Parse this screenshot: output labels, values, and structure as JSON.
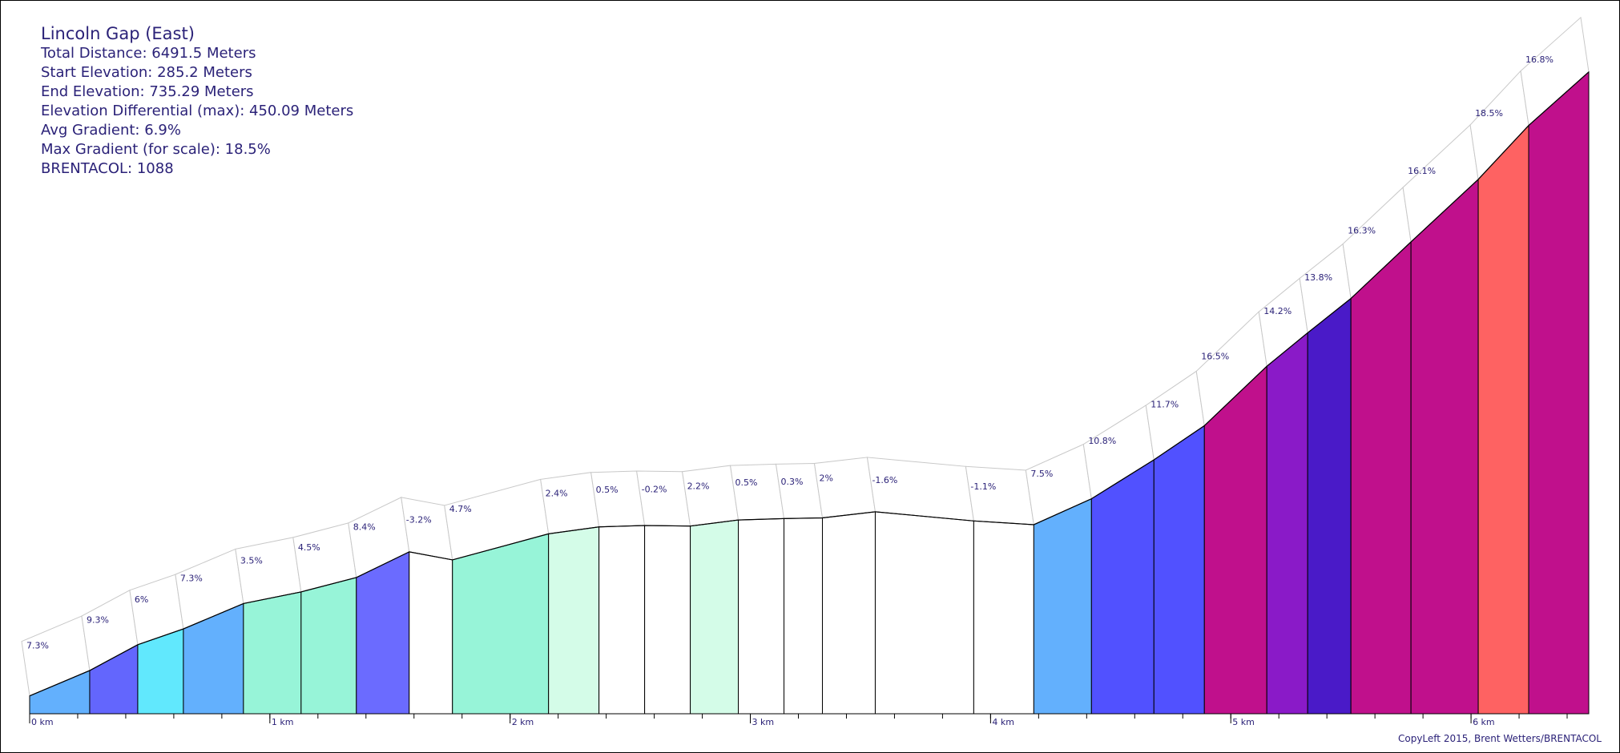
{
  "info": {
    "title": "Lincoln Gap (East)",
    "total_distance": "Total Distance: 6491.5 Meters",
    "start_elevation": "Start Elevation: 285.2 Meters",
    "end_elevation": "End Elevation: 735.29 Meters",
    "elevation_differential": "Elevation Differential (max): 450.09 Meters",
    "avg_gradient": "Avg Gradient: 6.9%",
    "max_gradient": "Max Gradient (for scale): 18.5%",
    "brentacol": "BRENTACOL: 1088"
  },
  "credit": "CopyLeft 2015, Brent Wetters/BRENTACOL",
  "chart_data": {
    "type": "area",
    "xlabel": "",
    "ylabel": "",
    "x_unit": "km",
    "x_ticks": [
      "0 km",
      "1 km",
      "2 km",
      "3 km",
      "4 km",
      "5 km",
      "6 km"
    ],
    "xlim": [
      0,
      6.5
    ],
    "elevation_start": 285.2,
    "elevation_end": 735.29,
    "segments": [
      {
        "start_km": 0.0,
        "end_km": 0.25,
        "gradient_label": "7.3%",
        "color": "#63b0fd"
      },
      {
        "start_km": 0.25,
        "end_km": 0.45,
        "gradient_label": "9.3%",
        "color": "#6366fd"
      },
      {
        "start_km": 0.45,
        "end_km": 0.64,
        "gradient_label": "6%",
        "color": "#61e8fd"
      },
      {
        "start_km": 0.64,
        "end_km": 0.89,
        "gradient_label": "7.3%",
        "color": "#63b0fd"
      },
      {
        "start_km": 0.89,
        "end_km": 1.13,
        "gradient_label": "3.5%",
        "color": "#97f4d8"
      },
      {
        "start_km": 1.13,
        "end_km": 1.36,
        "gradient_label": "4.5%",
        "color": "#97f4d8"
      },
      {
        "start_km": 1.36,
        "end_km": 1.58,
        "gradient_label": "8.4%",
        "color": "#6b6bff"
      },
      {
        "start_km": 1.58,
        "end_km": 1.76,
        "gradient_label": "-3.2%",
        "color": "#ffffff"
      },
      {
        "start_km": 1.76,
        "end_km": 2.16,
        "gradient_label": "4.7%",
        "color": "#97f4d8"
      },
      {
        "start_km": 2.16,
        "end_km": 2.37,
        "gradient_label": "2.4%",
        "color": "#d4fce8"
      },
      {
        "start_km": 2.37,
        "end_km": 2.56,
        "gradient_label": "0.5%",
        "color": "#ffffff"
      },
      {
        "start_km": 2.56,
        "end_km": 2.75,
        "gradient_label": "-0.2%",
        "color": "#ffffff"
      },
      {
        "start_km": 2.75,
        "end_km": 2.95,
        "gradient_label": "2.2%",
        "color": "#d4fce8"
      },
      {
        "start_km": 2.95,
        "end_km": 3.14,
        "gradient_label": "0.5%",
        "color": "#ffffff"
      },
      {
        "start_km": 3.14,
        "end_km": 3.3,
        "gradient_label": "0.3%",
        "color": "#ffffff"
      },
      {
        "start_km": 3.3,
        "end_km": 3.52,
        "gradient_label": "2%",
        "color": "#ffffff"
      },
      {
        "start_km": 3.52,
        "end_km": 3.93,
        "gradient_label": "-1.6%",
        "color": "#ffffff"
      },
      {
        "start_km": 3.93,
        "end_km": 4.18,
        "gradient_label": "-1.1%",
        "color": "#ffffff"
      },
      {
        "start_km": 4.18,
        "end_km": 4.42,
        "gradient_label": "7.5%",
        "color": "#63b0fd"
      },
      {
        "start_km": 4.42,
        "end_km": 4.68,
        "gradient_label": "10.8%",
        "color": "#5151ff"
      },
      {
        "start_km": 4.68,
        "end_km": 4.89,
        "gradient_label": "11.7%",
        "color": "#5151ff"
      },
      {
        "start_km": 4.89,
        "end_km": 5.15,
        "gradient_label": "16.5%",
        "color": "#c0108c"
      },
      {
        "start_km": 5.15,
        "end_km": 5.32,
        "gradient_label": "14.2%",
        "color": "#8a1ac8"
      },
      {
        "start_km": 5.32,
        "end_km": 5.5,
        "gradient_label": "13.8%",
        "color": "#4a1ac8"
      },
      {
        "start_km": 5.5,
        "end_km": 5.75,
        "gradient_label": "16.3%",
        "color": "#c0108c"
      },
      {
        "start_km": 5.75,
        "end_km": 6.03,
        "gradient_label": "16.1%",
        "color": "#c0108c"
      },
      {
        "start_km": 6.03,
        "end_km": 6.24,
        "gradient_label": "18.5%",
        "color": "#fe6262"
      },
      {
        "start_km": 6.24,
        "end_km": 6.49,
        "gradient_label": "16.8%",
        "color": "#c0108c"
      }
    ],
    "elevation_points": [
      285.2,
      303.5,
      322.1,
      333.5,
      351.8,
      360.2,
      370.6,
      389.1,
      383.3,
      402.1,
      407.1,
      408.1,
      407.7,
      412.1,
      413.1,
      413.6,
      418.0,
      411.4,
      408.7,
      427.4,
      455.5,
      480.1,
      523.0,
      547.1,
      571.9,
      612.7,
      657.8,
      696.7,
      735.29
    ]
  }
}
